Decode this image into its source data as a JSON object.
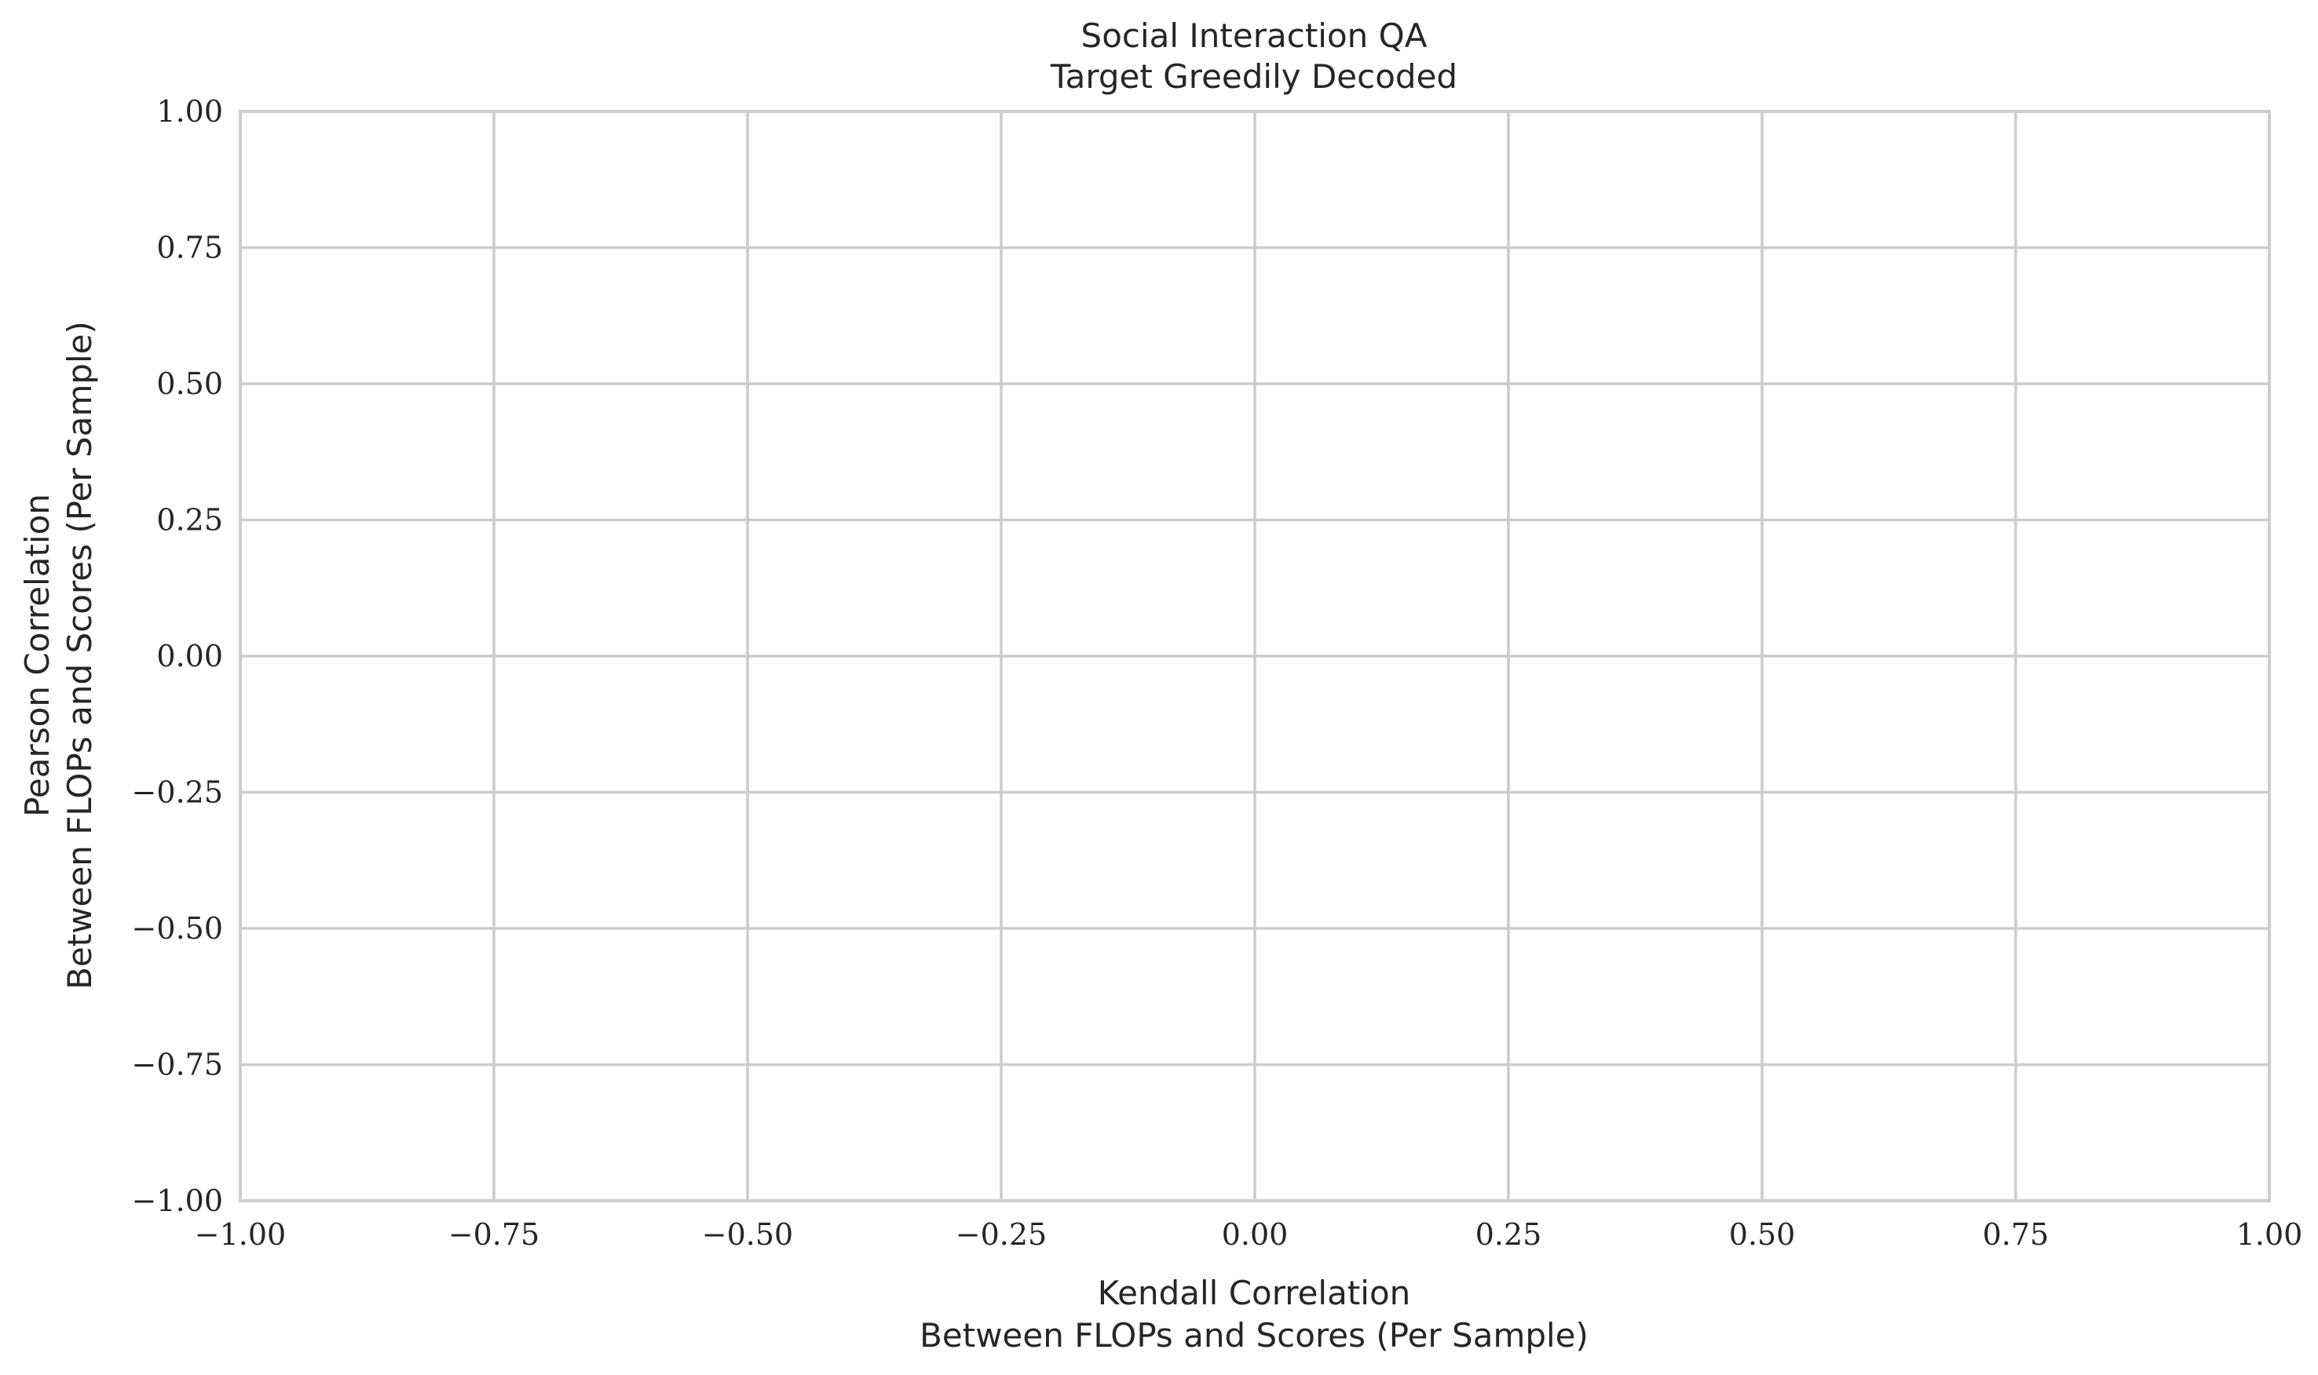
{
  "chart_data": {
    "type": "scatter",
    "title": "Social Interaction QA",
    "subtitle": "Target Greedily Decoded",
    "xlabel": "Kendall Correlation",
    "xlabel_line2": "Between FLOPs and Scores (Per Sample)",
    "ylabel": "Pearson Correlation",
    "ylabel_line2": "Between FLOPs and Scores (Per Sample)",
    "xlim": [
      -1.0,
      1.0
    ],
    "ylim": [
      -1.0,
      1.0
    ],
    "xticks": [
      -1.0,
      -0.75,
      -0.5,
      -0.25,
      0.0,
      0.25,
      0.5,
      0.75,
      1.0
    ],
    "yticks": [
      -1.0,
      -0.75,
      -0.5,
      -0.25,
      0.0,
      0.25,
      0.5,
      0.75,
      1.0
    ],
    "xtick_labels": [
      "−1.00",
      "−0.75",
      "−0.50",
      "−0.25",
      "0.00",
      "0.25",
      "0.50",
      "0.75",
      "1.00"
    ],
    "ytick_labels": [
      "−1.00",
      "−0.75",
      "−0.50",
      "−0.25",
      "0.00",
      "0.25",
      "0.50",
      "0.75",
      "1.00"
    ],
    "grid": true,
    "series": []
  }
}
